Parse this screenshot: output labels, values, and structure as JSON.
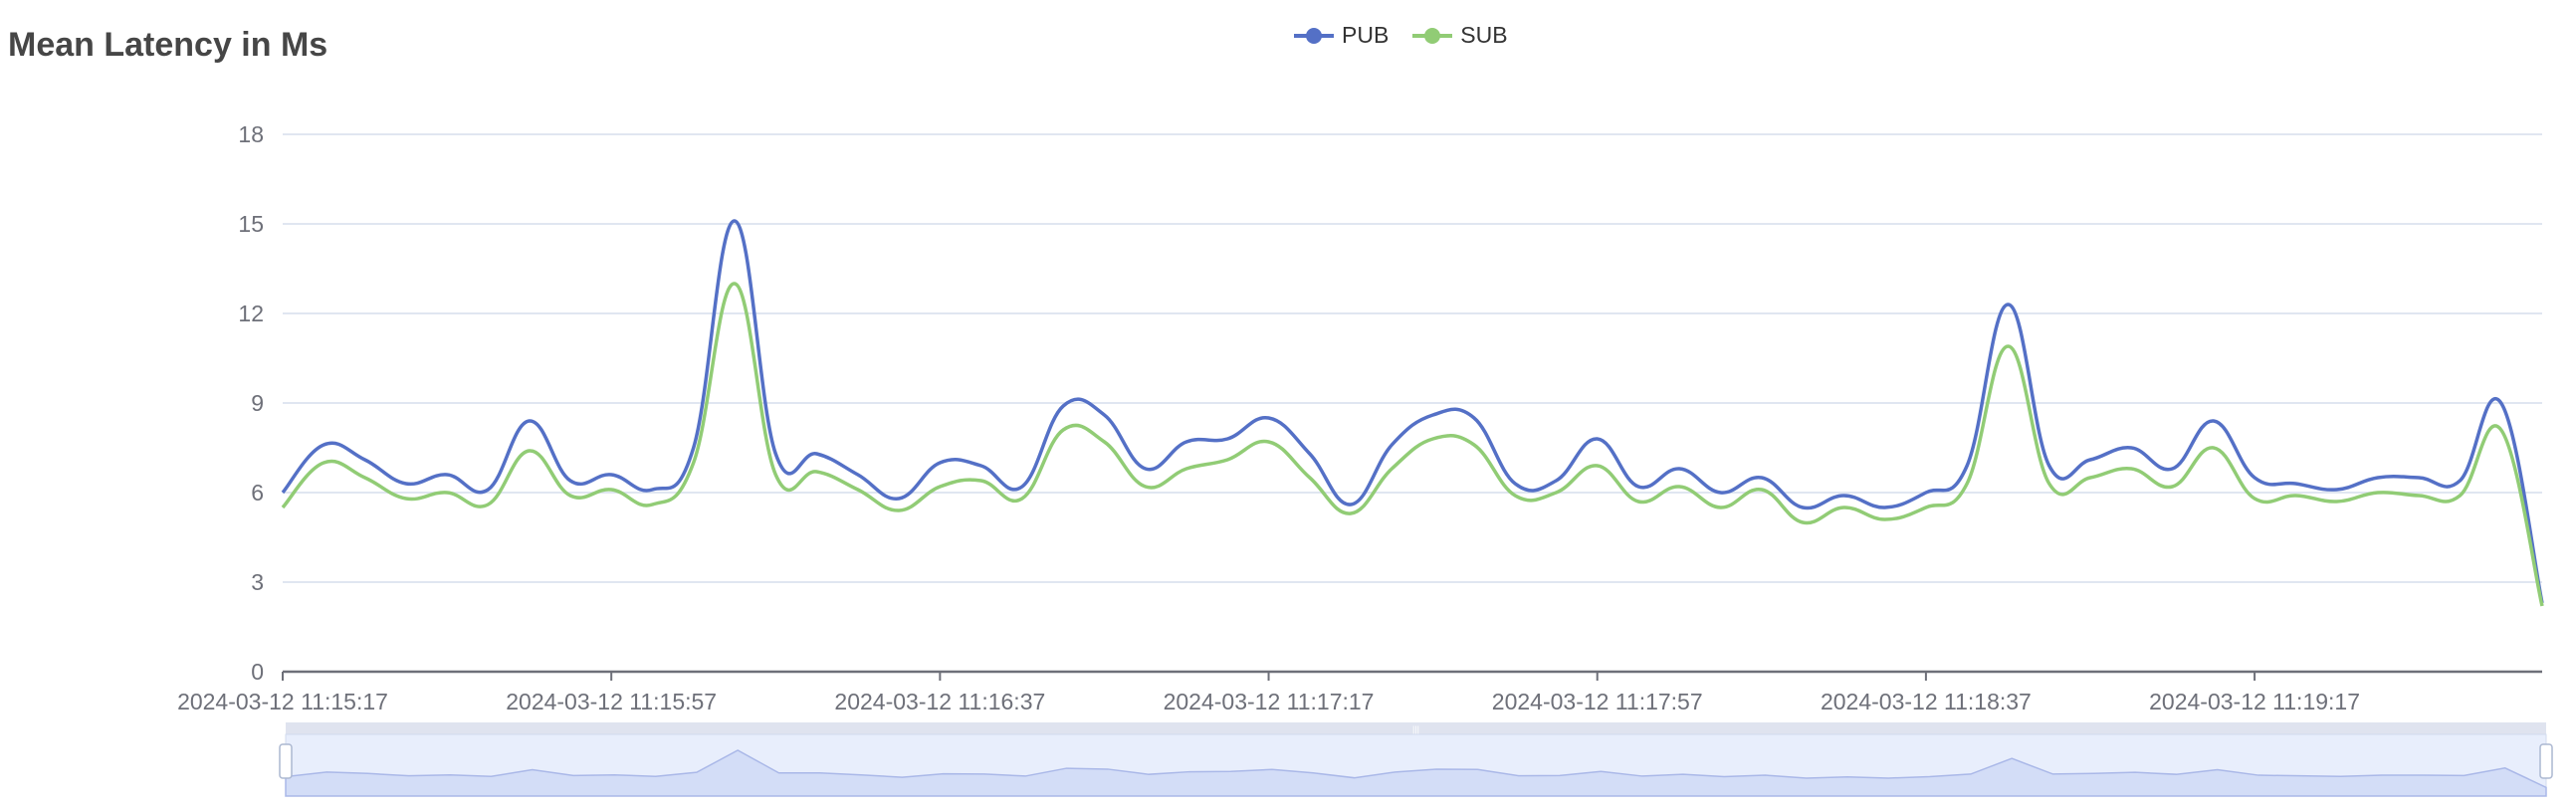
{
  "chart_data": {
    "type": "line",
    "title": "Mean Latency in Ms",
    "xlabel": "",
    "ylabel": "",
    "ylim": [
      0,
      18
    ],
    "yticks": [
      0,
      3,
      6,
      9,
      12,
      15,
      18
    ],
    "grid": true,
    "legend_position": "top-center",
    "x_tick_labels": [
      "2024-03-12 11:15:17",
      "2024-03-12 11:15:57",
      "2024-03-12 11:16:37",
      "2024-03-12 11:17:17",
      "2024-03-12 11:17:57",
      "2024-03-12 11:18:37",
      "2024-03-12 11:19:17"
    ],
    "x_tick_every": 8,
    "categories": [
      "11:15:17",
      "11:15:22",
      "11:15:27",
      "11:15:32",
      "11:15:37",
      "11:15:42",
      "11:15:47",
      "11:15:52",
      "11:15:57",
      "11:16:02",
      "11:16:07",
      "11:16:12",
      "11:16:17",
      "11:16:22",
      "11:16:27",
      "11:16:32",
      "11:16:37",
      "11:16:42",
      "11:16:47",
      "11:16:52",
      "11:16:57",
      "11:17:02",
      "11:17:07",
      "11:17:12",
      "11:17:17",
      "11:17:22",
      "11:17:27",
      "11:17:32",
      "11:17:37",
      "11:17:42",
      "11:17:47",
      "11:17:52",
      "11:17:57",
      "11:18:02",
      "11:18:07",
      "11:18:12",
      "11:18:17",
      "11:18:22",
      "11:18:27",
      "11:18:32",
      "11:18:37",
      "11:18:42",
      "11:18:47",
      "11:18:52",
      "11:18:57",
      "11:19:02",
      "11:19:07",
      "11:19:12",
      "11:19:17",
      "11:19:22",
      "11:19:27",
      "11:19:32",
      "11:19:37",
      "11:19:42",
      "11:19:47",
      "11:19:52"
    ],
    "series": [
      {
        "name": "PUB",
        "color": "#5470c6",
        "values": [
          6.0,
          7.6,
          7.1,
          6.3,
          6.6,
          6.1,
          8.4,
          6.4,
          6.6,
          6.1,
          7.5,
          15.1,
          7.3,
          7.3,
          6.6,
          5.8,
          7.0,
          6.9,
          6.2,
          8.9,
          8.6,
          6.8,
          7.7,
          7.8,
          8.5,
          7.3,
          5.6,
          7.6,
          8.6,
          8.5,
          6.3,
          6.4,
          7.8,
          6.2,
          6.8,
          6.0,
          6.5,
          5.5,
          5.9,
          5.5,
          6.0,
          6.9,
          12.3,
          6.9,
          7.1,
          7.5,
          6.8,
          8.4,
          6.5,
          6.3,
          6.1,
          6.5,
          6.5,
          6.4,
          9.0,
          2.3
        ]
      },
      {
        "name": "SUB",
        "color": "#91cc75",
        "values": [
          5.5,
          7.0,
          6.5,
          5.8,
          6.0,
          5.6,
          7.4,
          5.9,
          6.1,
          5.6,
          7.0,
          13.0,
          6.6,
          6.7,
          6.1,
          5.4,
          6.2,
          6.4,
          5.8,
          8.1,
          7.7,
          6.2,
          6.8,
          7.1,
          7.7,
          6.5,
          5.3,
          6.8,
          7.8,
          7.6,
          5.9,
          6.0,
          6.9,
          5.7,
          6.2,
          5.5,
          6.1,
          5.0,
          5.5,
          5.1,
          5.5,
          6.3,
          10.9,
          6.3,
          6.5,
          6.8,
          6.2,
          7.5,
          5.8,
          5.9,
          5.7,
          6.0,
          5.9,
          5.9,
          8.1,
          2.2
        ]
      }
    ],
    "data_zoom": {
      "start_percent": 0,
      "end_percent": 100
    }
  }
}
